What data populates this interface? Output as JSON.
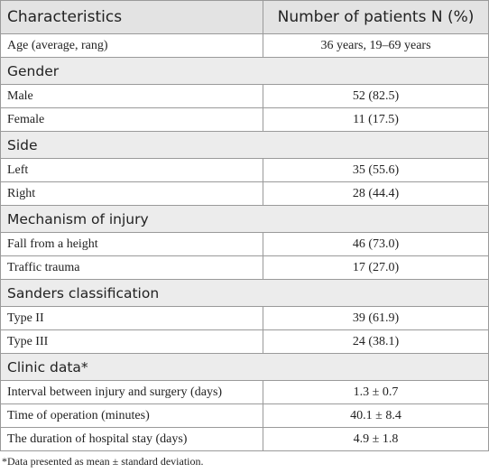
{
  "table": {
    "header": [
      "Characteristics",
      "Number of patients N (%)"
    ],
    "rows": [
      {
        "cells": [
          "Age (average, rang)",
          "36 years, 19–69 years"
        ]
      },
      {
        "section": "Gender"
      },
      {
        "cells": [
          "Male",
          "52 (82.5)"
        ]
      },
      {
        "cells": [
          "Female",
          "11 (17.5)"
        ]
      },
      {
        "section": "Side"
      },
      {
        "cells": [
          "Left",
          "35 (55.6)"
        ]
      },
      {
        "cells": [
          "Right",
          "28 (44.4)"
        ]
      },
      {
        "section": "Mechanism of injury"
      },
      {
        "cells": [
          "Fall from a height",
          "46 (73.0)"
        ]
      },
      {
        "cells": [
          "Traffic trauma",
          "17 (27.0)"
        ]
      },
      {
        "section": "Sanders classification"
      },
      {
        "cells": [
          "Type II",
          "39 (61.9)"
        ]
      },
      {
        "cells": [
          "Type III",
          "24 (38.1)"
        ]
      },
      {
        "section": "Clinic data*"
      },
      {
        "cells": [
          "Interval between injury and surgery (days)",
          "1.3 ± 0.7"
        ]
      },
      {
        "cells": [
          "Time of operation (minutes)",
          "40.1 ± 8.4"
        ]
      },
      {
        "cells": [
          "The duration of hospital stay (days)",
          "4.9 ± 1.8"
        ]
      }
    ],
    "footnote": "*Data presented as mean ± standard deviation."
  }
}
